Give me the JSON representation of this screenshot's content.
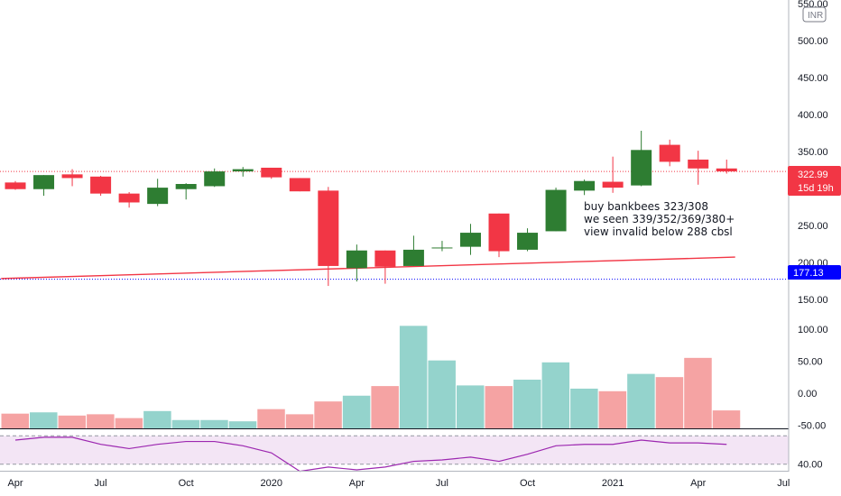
{
  "currency_badge": "INR",
  "price_badge": {
    "value": "322.99",
    "countdown": "15d 19h",
    "color": "#f23645"
  },
  "level_badge": {
    "value": "177.13",
    "color": "#0000ff"
  },
  "annotation": [
    "buy bankbees 323/308",
    "we seen 339/352/369/380+",
    "view invalid below 288 cbsl"
  ],
  "colors": {
    "up": "#2e7d32",
    "down": "#f23645",
    "hist_up": "#94d3cc",
    "hist_down": "#f5a3a3",
    "rsi": "#9c27b0",
    "trendline": "#f23645"
  },
  "chart_data": [
    {
      "type": "candlestick",
      "title": "",
      "price_ylim": [
        140,
        555
      ],
      "price_tick_labels": [
        "150.00",
        "200.00",
        "250.00",
        "350.00",
        "400.00",
        "450.00",
        "500.00",
        "550.00"
      ],
      "price_tick_values": [
        150,
        200,
        250,
        350,
        400,
        450,
        500,
        550
      ],
      "x_tick_labels": [
        "Apr",
        "Jul",
        "Oct",
        "2020",
        "Apr",
        "Jul",
        "Oct",
        "2021",
        "Apr",
        "Jul"
      ],
      "x_tick_months": [
        0,
        3,
        6,
        9,
        12,
        15,
        18,
        21,
        24,
        27
      ],
      "first_month": "2019-04",
      "candles": [
        {
          "month": "2019-04",
          "open": 308,
          "high": 310,
          "low": 298,
          "close": 299
        },
        {
          "month": "2019-05",
          "open": 299,
          "high": 318,
          "low": 290,
          "close": 318
        },
        {
          "month": "2019-06",
          "open": 319,
          "high": 326,
          "low": 303,
          "close": 314
        },
        {
          "month": "2019-07",
          "open": 316,
          "high": 317,
          "low": 290,
          "close": 293
        },
        {
          "month": "2019-08",
          "open": 293,
          "high": 295,
          "low": 274,
          "close": 281
        },
        {
          "month": "2019-09",
          "open": 279,
          "high": 313,
          "low": 276,
          "close": 301
        },
        {
          "month": "2019-10",
          "open": 299,
          "high": 307,
          "low": 285,
          "close": 306
        },
        {
          "month": "2019-11",
          "open": 303,
          "high": 327,
          "low": 302,
          "close": 323
        },
        {
          "month": "2019-12",
          "open": 323,
          "high": 329,
          "low": 316,
          "close": 326
        },
        {
          "month": "2020-01",
          "open": 328,
          "high": 328,
          "low": 313,
          "close": 315
        },
        {
          "month": "2020-02",
          "open": 314,
          "high": 314,
          "low": 296,
          "close": 296
        },
        {
          "month": "2020-03",
          "open": 297,
          "high": 302,
          "low": 168,
          "close": 195
        },
        {
          "month": "2020-04",
          "open": 192,
          "high": 224,
          "low": 174,
          "close": 216
        },
        {
          "month": "2020-05",
          "open": 216,
          "high": 216,
          "low": 171,
          "close": 194
        },
        {
          "month": "2020-06",
          "open": 195,
          "high": 236,
          "low": 195,
          "close": 217
        },
        {
          "month": "2020-07",
          "open": 219,
          "high": 229,
          "low": 215,
          "close": 220
        },
        {
          "month": "2020-08",
          "open": 221,
          "high": 252,
          "low": 210,
          "close": 240
        },
        {
          "month": "2020-09",
          "open": 266,
          "high": 266,
          "low": 207,
          "close": 215
        },
        {
          "month": "2020-10",
          "open": 217,
          "high": 246,
          "low": 215,
          "close": 240
        },
        {
          "month": "2020-11",
          "open": 242,
          "high": 301,
          "low": 242,
          "close": 298
        },
        {
          "month": "2020-12",
          "open": 297,
          "high": 312,
          "low": 291,
          "close": 310
        },
        {
          "month": "2021-01",
          "open": 309,
          "high": 343,
          "low": 294,
          "close": 301
        },
        {
          "month": "2021-02",
          "open": 304,
          "high": 378,
          "low": 303,
          "close": 352
        },
        {
          "month": "2021-03",
          "open": 359,
          "high": 366,
          "low": 330,
          "close": 336
        },
        {
          "month": "2021-04",
          "open": 339,
          "high": 351,
          "low": 305,
          "close": 327
        },
        {
          "month": "2021-05",
          "open": 327,
          "high": 339,
          "low": 320,
          "close": 323
        }
      ],
      "levels": [
        {
          "name": "price-line",
          "value": 322.99,
          "style": "dotted",
          "color": "#f23645"
        },
        {
          "name": "level-line",
          "value": 177.13,
          "style": "dotted",
          "color": "#0000ff"
        }
      ],
      "trendline": {
        "points": [
          [
            -0.5,
            178
          ],
          [
            25.3,
            207
          ]
        ]
      },
      "grid": false
    },
    {
      "type": "histogram",
      "ylim": [
        -55,
        135
      ],
      "tick_labels": [
        "-50.00",
        "0.00",
        "50.00",
        "100.00"
      ],
      "tick_values": [
        -50,
        0,
        50,
        100
      ],
      "baseline": -55,
      "values": [
        -32,
        -30,
        -35,
        -33,
        -39,
        -28,
        -42,
        -42,
        -44,
        -25,
        -33,
        -13,
        -4,
        11,
        105,
        51,
        12,
        11,
        21,
        48,
        7,
        3,
        30,
        25,
        55,
        -27
      ],
      "colors": [
        "down",
        "up",
        "down",
        "down",
        "down",
        "up",
        "up",
        "up",
        "up",
        "down",
        "down",
        "down",
        "up",
        "down",
        "up",
        "up",
        "up",
        "down",
        "up",
        "up",
        "up",
        "down",
        "up",
        "down",
        "down",
        "down"
      ]
    },
    {
      "type": "line",
      "name": "",
      "ylim": [
        36,
        64
      ],
      "band": [
        40,
        60
      ],
      "tick_labels": [
        "40.00"
      ],
      "tick_values": [
        40
      ],
      "values": [
        57,
        59,
        59,
        54,
        51,
        54,
        56,
        56,
        53,
        48,
        35,
        38,
        36,
        38,
        42,
        43,
        45,
        42,
        47,
        53,
        54,
        54,
        57,
        55,
        55,
        54
      ]
    }
  ]
}
